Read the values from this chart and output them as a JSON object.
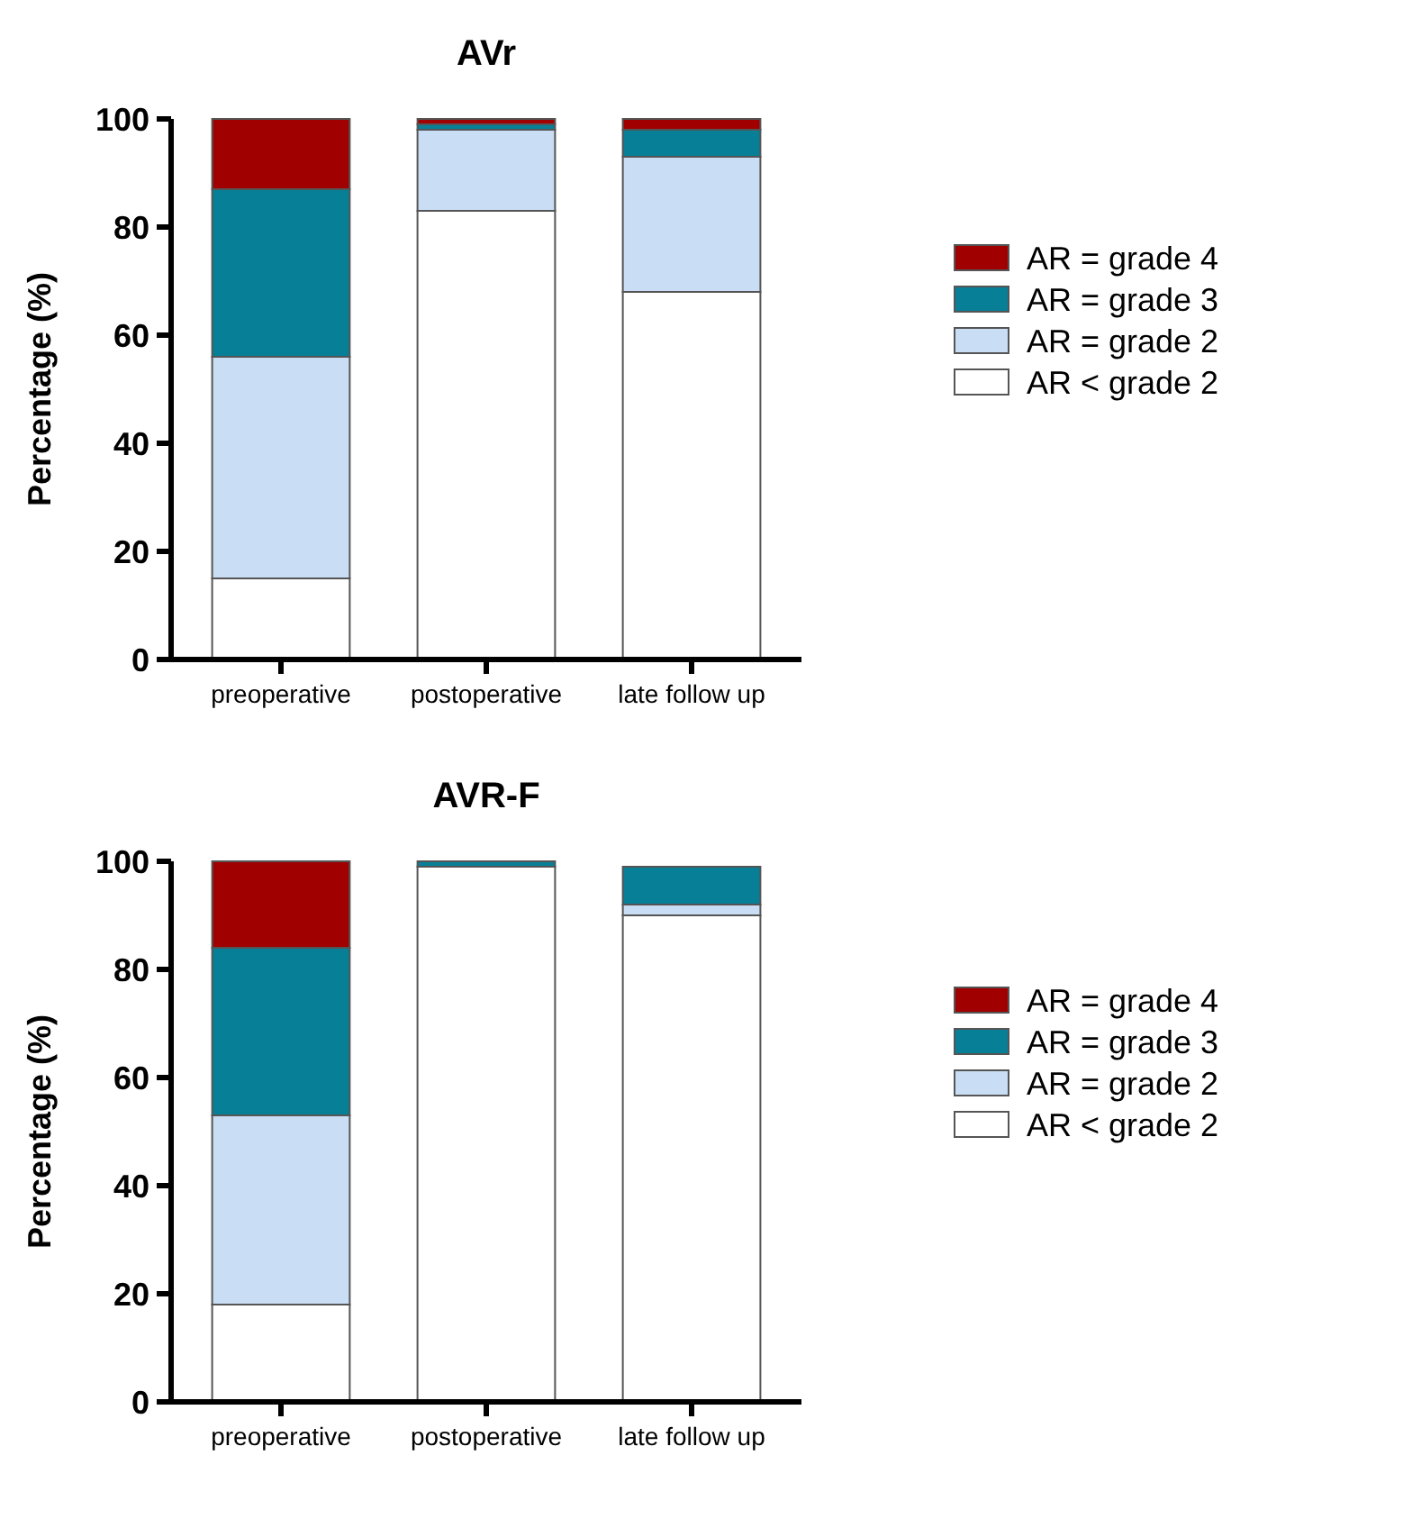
{
  "chart_data": [
    {
      "type": "bar",
      "title": "AVr",
      "ylabel": "Percentage (%)",
      "categories": [
        "preoperative",
        "postoperative",
        "late follow up"
      ],
      "stacked": true,
      "ylim": [
        0,
        100
      ],
      "yticks": [
        0,
        20,
        40,
        60,
        80,
        100
      ],
      "legend": "right",
      "grid": false,
      "series": [
        {
          "name": "AR < grade 2",
          "color": "#ffffff",
          "values": [
            15,
            83,
            68
          ]
        },
        {
          "name": "AR = grade 2",
          "color": "#c9ddf5",
          "values": [
            41,
            15,
            25
          ]
        },
        {
          "name": "AR = grade 3",
          "color": "#077f96",
          "values": [
            31,
            1,
            5
          ]
        },
        {
          "name": "AR = grade 4",
          "color": "#a00000",
          "values": [
            13,
            1,
            2
          ]
        }
      ]
    },
    {
      "type": "bar",
      "title": "AVR-F",
      "ylabel": "Percentage (%)",
      "categories": [
        "preoperative",
        "postoperative",
        "late follow up"
      ],
      "stacked": true,
      "ylim": [
        0,
        100
      ],
      "yticks": [
        0,
        20,
        40,
        60,
        80,
        100
      ],
      "legend": "right",
      "grid": false,
      "series": [
        {
          "name": "AR < grade 2",
          "color": "#ffffff",
          "values": [
            18,
            99,
            90
          ]
        },
        {
          "name": "AR = grade 2",
          "color": "#c9ddf5",
          "values": [
            35,
            0,
            2
          ]
        },
        {
          "name": "AR = grade 3",
          "color": "#077f96",
          "values": [
            31,
            1,
            7
          ]
        },
        {
          "name": "AR = grade 4",
          "color": "#a00000",
          "values": [
            16,
            0,
            0
          ]
        }
      ]
    }
  ]
}
